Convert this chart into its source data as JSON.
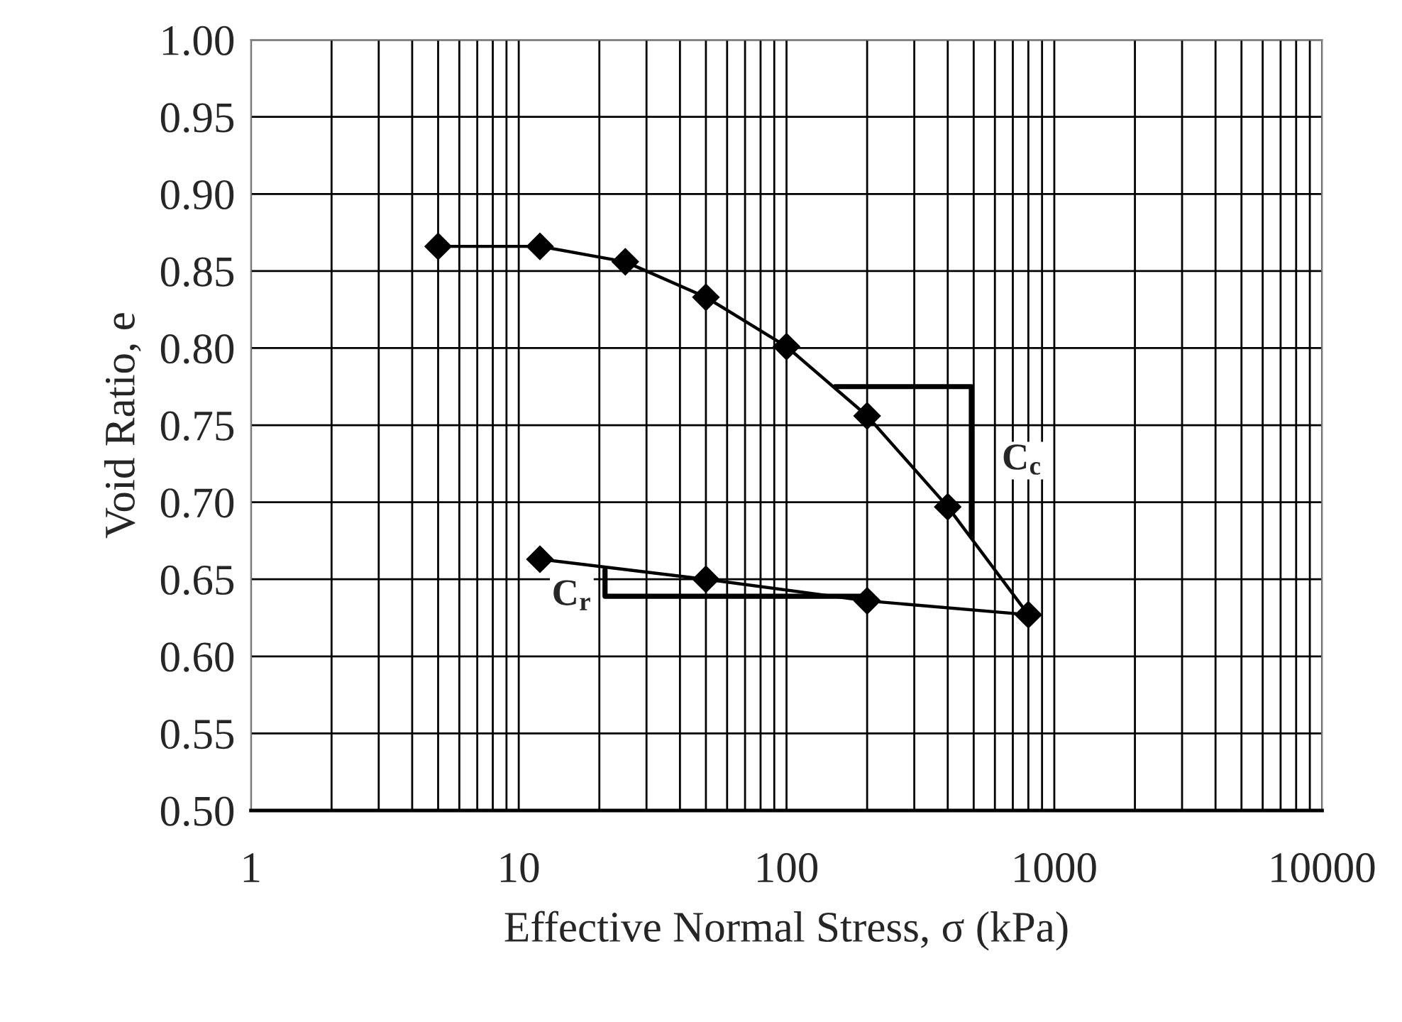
{
  "chart_data": {
    "type": "line",
    "xlabel": "Effective Normal Stress, σ (kPa)",
    "ylabel": "Void Ratio, e",
    "series": [
      {
        "color": "#000000",
        "marker": "diamond",
        "x": [
          5,
          12,
          25,
          50,
          100,
          200,
          400,
          800,
          200,
          50,
          12
        ],
        "values": [
          0.866,
          0.866,
          0.856,
          0.833,
          0.801,
          0.756,
          0.697,
          0.627,
          0.636,
          0.65,
          0.663
        ]
      },
      {
        "color": "#000000",
        "marker": "none",
        "x": [
          152,
          490,
          490
        ],
        "values": [
          0.775,
          0.775,
          0.679
        ]
      },
      {
        "color": "#000000",
        "marker": "none",
        "x": [
          21,
          21,
          200
        ],
        "values": [
          0.656,
          0.639,
          0.639
        ]
      }
    ],
    "annotations": [
      "C$_{c}$",
      "C$_{r}$"
    ],
    "log": "x",
    "xlim": [
      1,
      10000
    ],
    "xticks": [
      1,
      10,
      100,
      1000,
      10000
    ],
    "ylim": [
      0.5,
      1.0
    ],
    "yticks": [
      {
        "value": 0.5,
        "label": "0.50"
      },
      {
        "value": 0.55,
        "label": "0.55"
      },
      {
        "value": 0.6,
        "label": "0.60"
      },
      {
        "value": 0.65,
        "label": "0.65"
      },
      {
        "value": 0.7,
        "label": "0.70"
      },
      {
        "value": 0.75,
        "label": "0.75"
      },
      {
        "value": 0.8,
        "label": "0.80"
      },
      {
        "value": 0.85,
        "label": "0.85"
      },
      {
        "value": 0.9,
        "label": "0.90"
      },
      {
        "value": 0.95,
        "label": "0.95"
      },
      {
        "value": 1.0,
        "label": "1.00"
      }
    ],
    "grid": true,
    "legend": false
  }
}
